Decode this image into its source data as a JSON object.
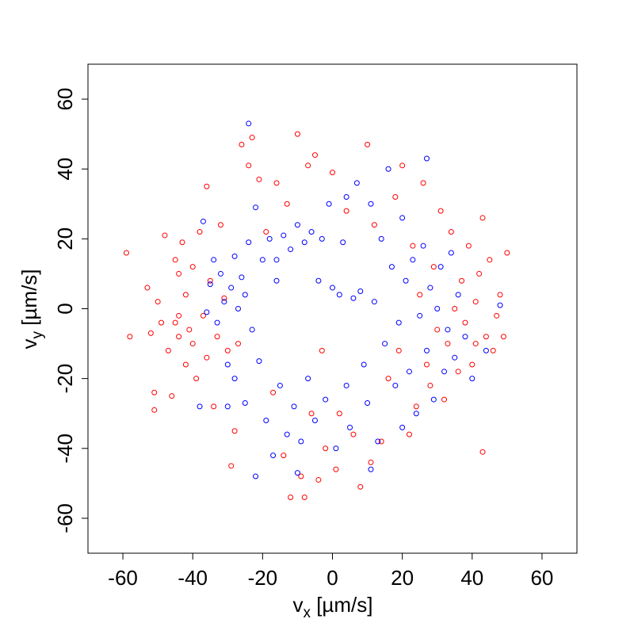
{
  "chart_data": {
    "type": "scatter",
    "x_label": {
      "base": "v",
      "sub": "x",
      "unit": " [µm/s]"
    },
    "y_label": {
      "base": "v",
      "sub": "y",
      "unit": " [µm/s]"
    },
    "xlim": [
      -70,
      70
    ],
    "ylim": [
      -70,
      70
    ],
    "xticks": [
      -60,
      -40,
      -20,
      0,
      20,
      40,
      60
    ],
    "yticks": [
      -60,
      -40,
      -20,
      0,
      20,
      40,
      60
    ],
    "marker": "open-circle",
    "series": [
      {
        "color": "#ff0000",
        "x": [
          -59,
          -58,
          -53,
          -52,
          -51,
          -51,
          -50,
          -49,
          -48,
          -47,
          -46,
          -45,
          -44,
          -44,
          -44,
          -43,
          -42,
          -42,
          -41,
          -40,
          -40,
          -39,
          -38,
          -37,
          -36,
          -36,
          -35,
          -34,
          -33,
          -32,
          -31,
          -30,
          -29,
          -28,
          -26,
          -24,
          -23,
          -21,
          -19,
          -17,
          -16,
          -14,
          -13,
          -12,
          -10,
          -9,
          -8,
          -7,
          -6,
          -5,
          -4,
          -3,
          -2,
          0,
          1,
          2,
          4,
          6,
          8,
          10,
          11,
          12,
          14,
          16,
          18,
          19,
          20,
          22,
          23,
          24,
          25,
          26,
          27,
          28,
          29,
          30,
          31,
          32,
          33,
          34,
          35,
          36,
          37,
          38,
          39,
          40,
          41,
          42,
          43,
          43,
          44,
          45,
          46,
          47,
          48,
          49,
          50,
          41,
          -45,
          -27
        ],
        "y": [
          16,
          -8,
          6,
          -7,
          -24,
          -29,
          2,
          -4,
          21,
          -12,
          -25,
          14,
          10,
          -2,
          -8,
          19,
          -16,
          4,
          -6,
          12,
          -10,
          -20,
          22,
          -2,
          -14,
          35,
          8,
          -28,
          -8,
          24,
          3,
          -12,
          -45,
          -35,
          47,
          41,
          49,
          37,
          22,
          -24,
          36,
          -42,
          30,
          -54,
          50,
          -48,
          -54,
          41,
          -30,
          44,
          -49,
          -12,
          -40,
          39,
          -46,
          -30,
          28,
          -36,
          -51,
          47,
          -44,
          24,
          -38,
          -20,
          32,
          -12,
          41,
          -36,
          18,
          -28,
          4,
          36,
          -16,
          -22,
          12,
          -6,
          28,
          -26,
          -10,
          22,
          0,
          -18,
          8,
          -4,
          18,
          -16,
          2,
          10,
          -41,
          26,
          -8,
          14,
          -12,
          -2,
          4,
          -8,
          16,
          -10,
          -4,
          -10
        ]
      },
      {
        "color": "#0000ff",
        "x": [
          -38,
          -37,
          -36,
          -35,
          -34,
          -33,
          -32,
          -31,
          -30,
          -30,
          -29,
          -28,
          -28,
          -27,
          -26,
          -25,
          -25,
          -24,
          -23,
          -22,
          -22,
          -21,
          -20,
          -19,
          -18,
          -17,
          -16,
          -15,
          -14,
          -13,
          -12,
          -11,
          -10,
          -9,
          -8,
          -7,
          -6,
          -5,
          -4,
          -3,
          -2,
          -1,
          0,
          1,
          2,
          3,
          4,
          5,
          6,
          7,
          8,
          9,
          10,
          11,
          12,
          13,
          14,
          15,
          16,
          17,
          18,
          19,
          20,
          21,
          22,
          23,
          24,
          25,
          26,
          27,
          27,
          28,
          29,
          30,
          31,
          32,
          33,
          34,
          35,
          36,
          38,
          40,
          44,
          48,
          -24,
          -10,
          11,
          4,
          -16,
          20
        ],
        "y": [
          -28,
          25,
          -1,
          7,
          14,
          -4,
          10,
          2,
          -28,
          -16,
          6,
          -20,
          15,
          0,
          9,
          -27,
          4,
          19,
          -6,
          -48,
          29,
          -15,
          14,
          -32,
          20,
          -42,
          8,
          -22,
          21,
          -36,
          17,
          -28,
          24,
          -38,
          19,
          -20,
          22,
          -32,
          8,
          20,
          -26,
          30,
          6,
          -40,
          4,
          19,
          -22,
          -34,
          3,
          36,
          5,
          -16,
          -27,
          30,
          2,
          -38,
          20,
          -10,
          40,
          12,
          -22,
          -4,
          26,
          8,
          -18,
          14,
          -30,
          -2,
          18,
          -12,
          43,
          6,
          -26,
          0,
          12,
          -18,
          -6,
          16,
          -14,
          4,
          -8,
          -20,
          -12,
          1,
          53,
          -47,
          -46,
          32,
          14,
          -34
        ]
      }
    ]
  }
}
